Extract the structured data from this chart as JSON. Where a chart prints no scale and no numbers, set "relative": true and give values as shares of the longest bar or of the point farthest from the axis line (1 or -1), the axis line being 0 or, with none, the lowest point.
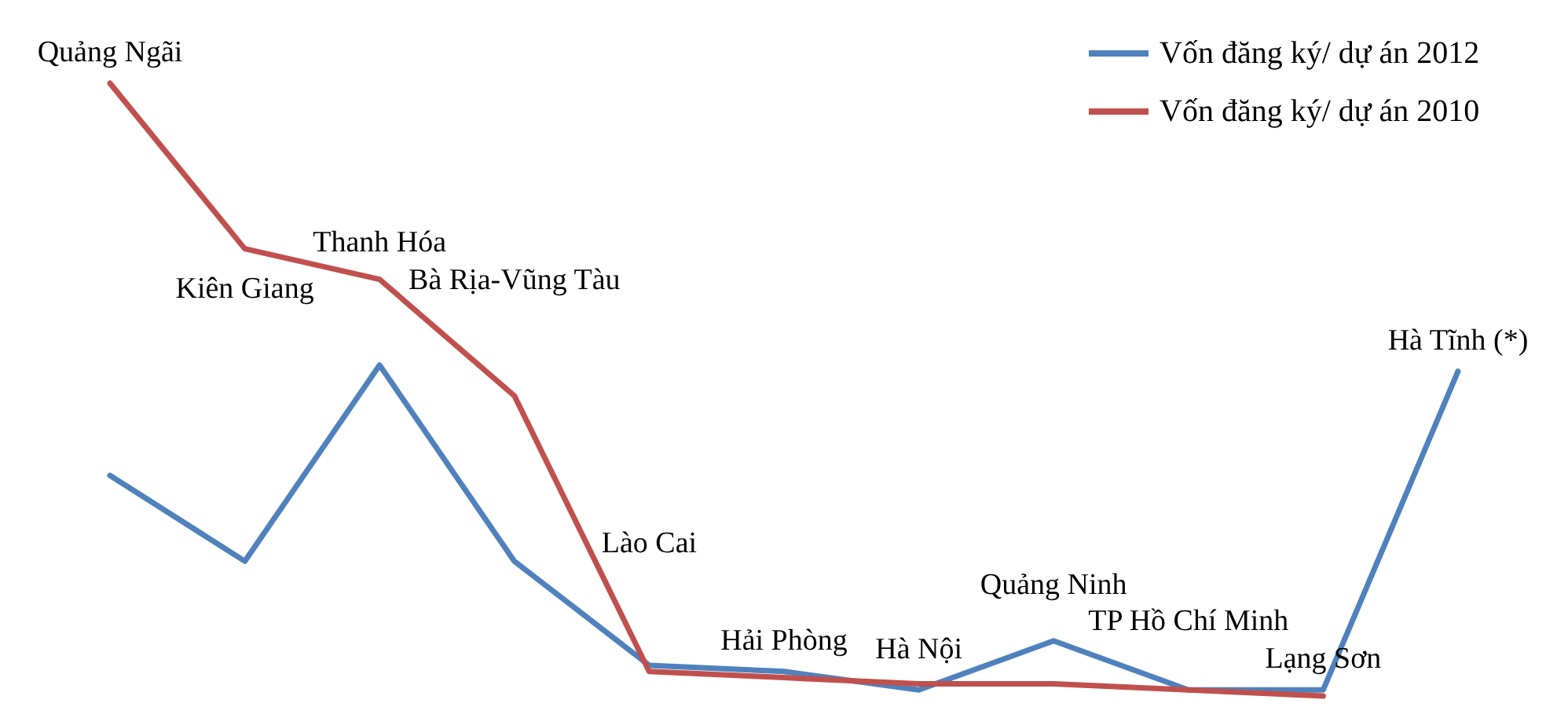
{
  "chart_data": {
    "type": "line",
    "relative": true,
    "legend": "top right",
    "categories": [
      "Quảng Ngãi",
      "Kiên Giang",
      "Thanh Hóa",
      "Bà Rịa-Vũng Tàu",
      "Lào Cai",
      "Hải Phòng",
      "Hà Nội",
      "Quảng Ninh",
      "TP Hồ Chí Minh",
      "Lạng Sơn",
      "Hà Tĩnh (*)"
    ],
    "series": [
      {
        "name": "Vốn đăng ký/ dự án 2012",
        "color": "#4f81bd",
        "values": [
          0.36,
          0.22,
          0.54,
          0.22,
          0.05,
          0.04,
          0.01,
          0.09,
          0.01,
          0.01,
          0.53
        ]
      },
      {
        "name": "Vốn đăng ký/ dự án 2010",
        "color": "#c0504d",
        "values": [
          1,
          0.73,
          0.68,
          0.49,
          0.04,
          0.03,
          0.02,
          0.02,
          0.01,
          0,
          null
        ]
      }
    ]
  }
}
